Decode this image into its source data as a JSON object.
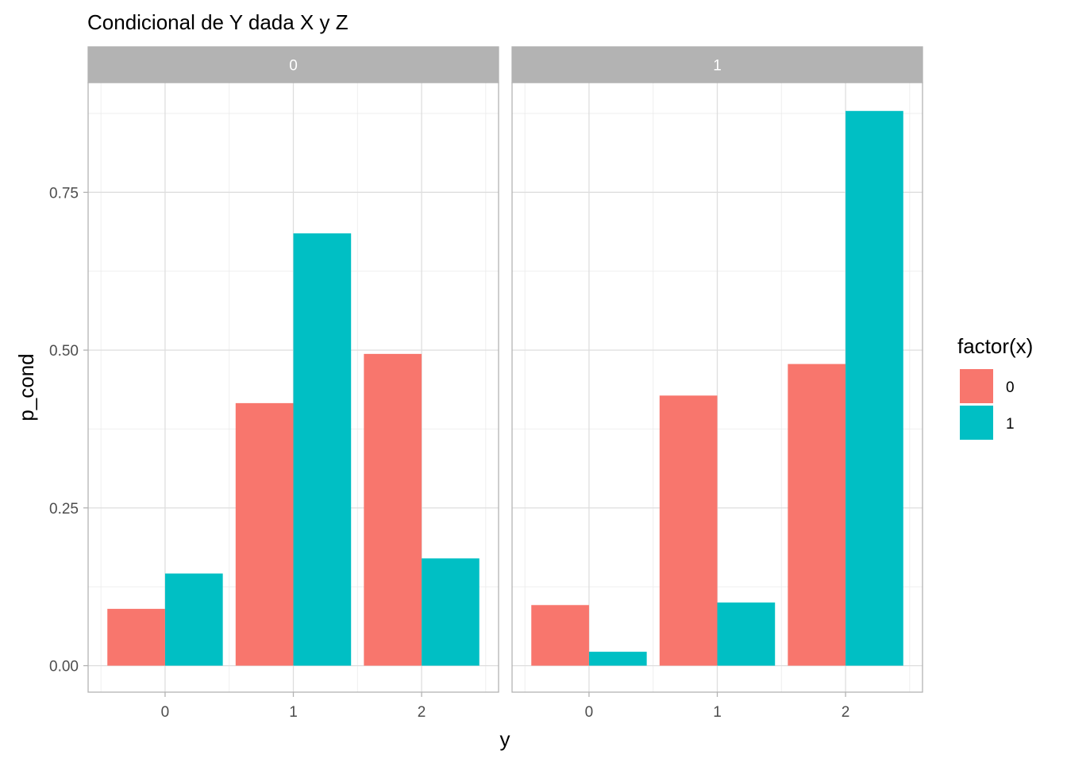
{
  "chart_data": {
    "type": "bar",
    "title": "Condicional de Y dada X y Z",
    "xlabel": "y",
    "ylabel": "p_cond",
    "ylim": [
      -0.042,
      0.924
    ],
    "yticks": [
      0.0,
      0.25,
      0.5,
      0.75
    ],
    "ytick_labels": [
      "0.00",
      "0.25",
      "0.50",
      "0.75"
    ],
    "categories": [
      "0",
      "1",
      "2"
    ],
    "grid": true,
    "legend": {
      "title": "factor(x)",
      "position": "right"
    },
    "facets": [
      {
        "label": "0",
        "series": [
          {
            "name": "0",
            "values": [
              0.09,
              0.416,
              0.494
            ]
          },
          {
            "name": "1",
            "values": [
              0.146,
              0.685,
              0.17
            ]
          }
        ]
      },
      {
        "label": "1",
        "series": [
          {
            "name": "0",
            "values": [
              0.096,
              0.428,
              0.478
            ]
          },
          {
            "name": "1",
            "values": [
              0.022,
              0.1,
              0.879
            ]
          }
        ]
      }
    ],
    "colors": {
      "0": "#F8766D",
      "1": "#00BFC4"
    }
  }
}
